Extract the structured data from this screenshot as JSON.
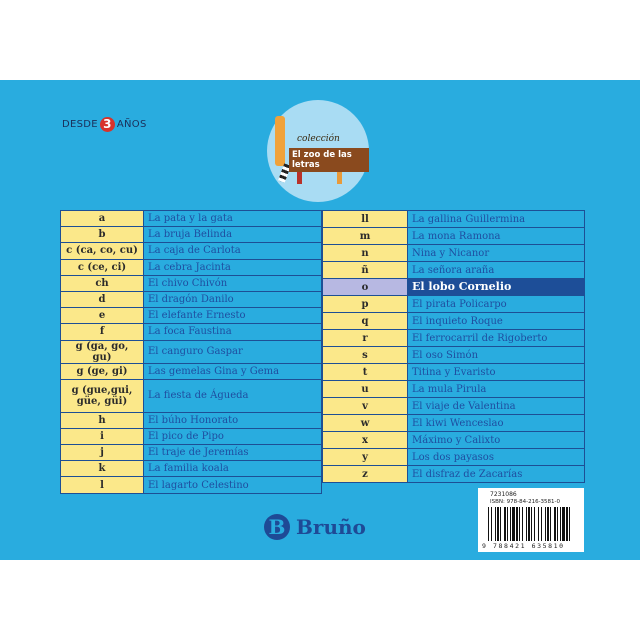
{
  "age_badge": {
    "prefix": "DESDE",
    "number": "3",
    "suffix": "AÑOS"
  },
  "collection_logo": {
    "label": "colección",
    "title": "El zoo de las letras"
  },
  "left_table": [
    {
      "letter": "a",
      "title": "La pata y la gata"
    },
    {
      "letter": "b",
      "title": "La bruja Belinda"
    },
    {
      "letter": "c (ca, co, cu)",
      "title": "La caja de Carlota"
    },
    {
      "letter": "c (ce, ci)",
      "title": "La cebra Jacinta"
    },
    {
      "letter": "ch",
      "title": "El chivo Chivón"
    },
    {
      "letter": "d",
      "title": "El dragón Danilo"
    },
    {
      "letter": "e",
      "title": "El elefante Ernesto"
    },
    {
      "letter": "f",
      "title": "La foca Faustina"
    },
    {
      "letter": "g (ga, go, gu)",
      "title": "El canguro Gaspar"
    },
    {
      "letter": "g (ge, gi)",
      "title": "Las gemelas Gina y Gema"
    },
    {
      "letter": "g (gue,gui, güe, güi)",
      "title": "La fiesta de Águeda"
    },
    {
      "letter": "h",
      "title": "El búho Honorato"
    },
    {
      "letter": "i",
      "title": "El pico de Pipo"
    },
    {
      "letter": "j",
      "title": "El traje de Jeremías"
    },
    {
      "letter": "k",
      "title": "La familia koala"
    },
    {
      "letter": "l",
      "title": "El lagarto Celestino"
    }
  ],
  "right_table": [
    {
      "letter": "ll",
      "title": "La gallina Guillermina"
    },
    {
      "letter": "m",
      "title": "La mona Ramona"
    },
    {
      "letter": "n",
      "title": "Nina y Nicanor"
    },
    {
      "letter": "ñ",
      "title": "La señora araña"
    },
    {
      "letter": "o",
      "title": "El lobo Cornelio",
      "highlighted": true
    },
    {
      "letter": "p",
      "title": "El pirata Policarpo"
    },
    {
      "letter": "q",
      "title": "El inquieto Roque"
    },
    {
      "letter": "r",
      "title": "El ferrocarril de Rigoberto"
    },
    {
      "letter": "s",
      "title": "El oso Simón"
    },
    {
      "letter": "t",
      "title": "Titina y Evaristo"
    },
    {
      "letter": "u",
      "title": "La mula Pirula"
    },
    {
      "letter": "v",
      "title": "El viaje de Valentina"
    },
    {
      "letter": "w",
      "title": "El kiwi Wenceslao"
    },
    {
      "letter": "x",
      "title": "Máximo y Calixto"
    },
    {
      "letter": "y",
      "title": "Los dos payasos"
    },
    {
      "letter": "z",
      "title": "El disfraz de Zacarías"
    }
  ],
  "publisher": {
    "logo_letter": "B",
    "name": "Bruño"
  },
  "barcode": {
    "code": "7231086",
    "isbn": "ISBN: 978-84-216-3581-0",
    "digits": "9 788421 635810"
  },
  "colors": {
    "background": "#29acdf",
    "letter_cell": "#fbe88a",
    "highlight": "#1d4e98",
    "text": "#1f4ea0"
  }
}
